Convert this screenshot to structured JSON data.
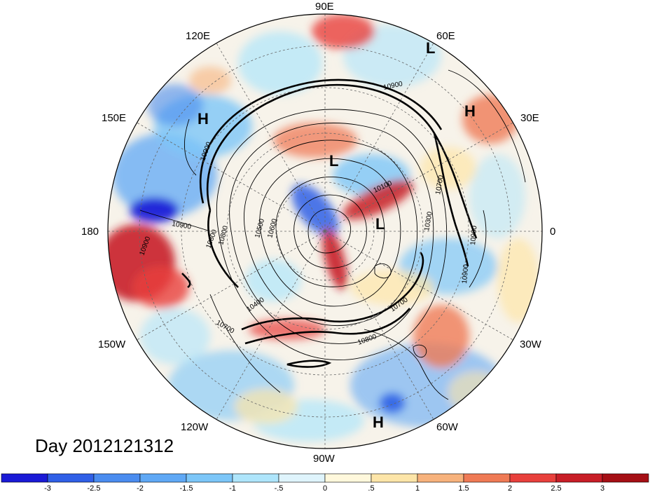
{
  "map": {
    "projection": "north-polar-stereographic",
    "longitude_labels": {
      "lon_90e": "90E",
      "lon_60e": "60E",
      "lon_30e": "30E",
      "lon_0": "0",
      "lon_30w": "30W",
      "lon_60w": "60W",
      "lon_90w": "90W",
      "lon_120w": "120W",
      "lon_150w": "150W",
      "lon_180": "180",
      "lon_150e": "150E",
      "lon_120e": "120E"
    },
    "pressure_centers": [
      {
        "type": "L",
        "label": "L"
      },
      {
        "type": "H",
        "label": "H"
      },
      {
        "type": "H",
        "label": "H"
      },
      {
        "type": "L",
        "label": "L"
      },
      {
        "type": "L",
        "label": "L"
      },
      {
        "type": "H",
        "label": "H"
      }
    ],
    "contour_labels": [
      "10900",
      "10900",
      "10900",
      "10900",
      "10900",
      "10800",
      "10800",
      "10700",
      "10700",
      "10100",
      "10500",
      "10300",
      "10400",
      "10600",
      "10700",
      "10800",
      "10900"
    ],
    "colors": {
      "ocean_neutral": "#f7f3ea",
      "positive_strong": "#a50f15",
      "negative_strong": "#1a1ad6",
      "contour": "#000000",
      "grid": "#555555"
    }
  },
  "title": {
    "day_label": "Day 2012121312"
  },
  "colorbar": {
    "ticks": [
      "-3",
      "-2.5",
      "-2",
      "-1.5",
      "-1",
      "-.5",
      "0",
      ".5",
      "1",
      "1.5",
      "2",
      "2.5",
      "3"
    ],
    "colors": [
      "#1a1ad6",
      "#2f5fe6",
      "#4a8cef",
      "#5fa8f5",
      "#7cc6f8",
      "#aee5fb",
      "#dff4fc",
      "#fff8dc",
      "#fde5a8",
      "#f7b27c",
      "#ef7a55",
      "#e8403c",
      "#c81e27",
      "#a50f15"
    ]
  }
}
